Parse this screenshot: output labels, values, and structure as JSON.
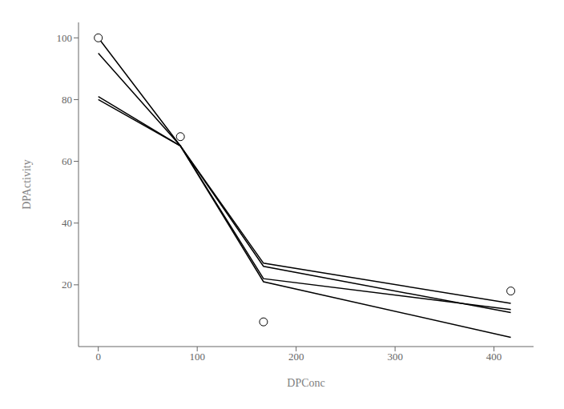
{
  "chart_data": {
    "type": "line",
    "xlabel": "DPConc",
    "ylabel": "DPActivity",
    "x": [
      0,
      83,
      167,
      417
    ],
    "xlim": [
      -20,
      440
    ],
    "ylim": [
      0,
      105
    ],
    "xticks": [
      0,
      100,
      200,
      300,
      400
    ],
    "yticks": [
      20,
      40,
      60,
      80,
      100
    ],
    "grid": false,
    "series": [
      {
        "color": "#000000",
        "values": [
          100,
          65,
          21,
          3
        ]
      },
      {
        "color": "#000000",
        "values": [
          95,
          65,
          22,
          12
        ]
      },
      {
        "color": "#000000",
        "values": [
          81,
          65,
          27,
          14
        ]
      },
      {
        "color": "#000000",
        "values": [
          80,
          65,
          26,
          11
        ]
      },
      {
        "type": "scatter",
        "marker": "circle",
        "color": "#000000",
        "values": [
          100,
          68,
          8,
          18
        ]
      }
    ]
  }
}
